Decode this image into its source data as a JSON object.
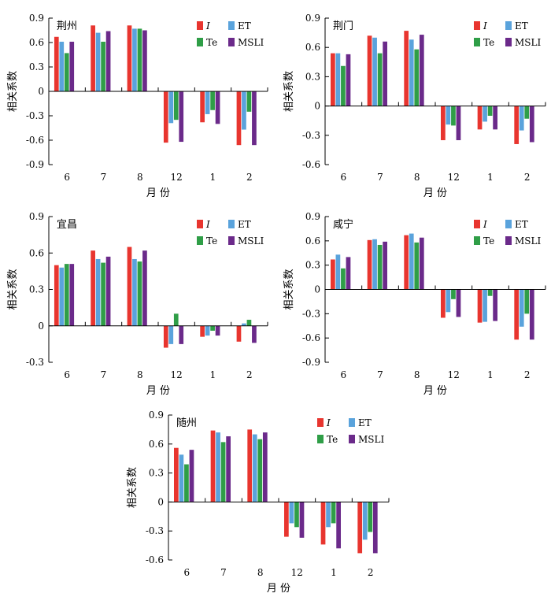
{
  "figure": {
    "xlabel": "月 份",
    "ylabel": "相关系数",
    "series_names": [
      "I",
      "ET",
      "Te",
      "MSLI"
    ],
    "series_colors": [
      "#e8352f",
      "#5aa3dc",
      "#2f9e47",
      "#6b2a8a"
    ]
  },
  "chart_data": [
    {
      "type": "bar",
      "title": "荆州",
      "categories": [
        "6",
        "7",
        "8",
        "12",
        "1",
        "2"
      ],
      "ylim": [
        -0.9,
        0.9
      ],
      "yticks": [
        "0.9",
        "0.6",
        "0.3",
        "0",
        "-0.3",
        "-0.6",
        "-0.9"
      ],
      "xlabel": "月 份",
      "ylabel": "相关系数",
      "grid": false,
      "legend": "top-right",
      "series": [
        {
          "name": "I",
          "values": [
            0.67,
            0.81,
            0.81,
            -0.63,
            -0.38,
            -0.66
          ]
        },
        {
          "name": "ET",
          "values": [
            0.61,
            0.72,
            0.77,
            -0.39,
            -0.28,
            -0.47
          ]
        },
        {
          "name": "Te",
          "values": [
            0.47,
            0.61,
            0.77,
            -0.35,
            -0.23,
            -0.25
          ]
        },
        {
          "name": "MSLI",
          "values": [
            0.61,
            0.74,
            0.75,
            -0.62,
            -0.4,
            -0.66
          ]
        }
      ]
    },
    {
      "type": "bar",
      "title": "荆门",
      "categories": [
        "6",
        "7",
        "8",
        "12",
        "1",
        "2"
      ],
      "ylim": [
        -0.6,
        0.9
      ],
      "yticks": [
        "0.9",
        "0.6",
        "0.3",
        "0",
        "-0.3",
        "-0.6"
      ],
      "xlabel": "月 份",
      "ylabel": "相关系数",
      "grid": false,
      "legend": "top-right",
      "series": [
        {
          "name": "I",
          "values": [
            0.54,
            0.72,
            0.77,
            -0.35,
            -0.24,
            -0.39
          ]
        },
        {
          "name": "ET",
          "values": [
            0.54,
            0.7,
            0.68,
            -0.19,
            -0.16,
            -0.25
          ]
        },
        {
          "name": "Te",
          "values": [
            0.41,
            0.54,
            0.58,
            -0.2,
            -0.1,
            -0.13
          ]
        },
        {
          "name": "MSLI",
          "values": [
            0.53,
            0.66,
            0.73,
            -0.35,
            -0.24,
            -0.37
          ]
        }
      ]
    },
    {
      "type": "bar",
      "title": "宜昌",
      "categories": [
        "6",
        "7",
        "8",
        "12",
        "1",
        "2"
      ],
      "ylim": [
        -0.3,
        0.9
      ],
      "yticks": [
        "0.9",
        "0.6",
        "0.3",
        "0",
        "-0.3"
      ],
      "xlabel": "月 份",
      "ylabel": "相关系数",
      "grid": false,
      "legend": "top-right",
      "series": [
        {
          "name": "I",
          "values": [
            0.5,
            0.62,
            0.65,
            -0.18,
            -0.09,
            -0.13
          ]
        },
        {
          "name": "ET",
          "values": [
            0.48,
            0.55,
            0.55,
            -0.15,
            -0.08,
            0.02
          ]
        },
        {
          "name": "Te",
          "values": [
            0.51,
            0.52,
            0.53,
            0.1,
            -0.04,
            0.05
          ]
        },
        {
          "name": "MSLI",
          "values": [
            0.51,
            0.57,
            0.62,
            -0.15,
            -0.08,
            -0.14
          ]
        }
      ]
    },
    {
      "type": "bar",
      "title": "咸宁",
      "categories": [
        "6",
        "7",
        "8",
        "12",
        "1",
        "2"
      ],
      "ylim": [
        -0.9,
        0.9
      ],
      "yticks": [
        "0.9",
        "0.6",
        "0.3",
        "0",
        "-0.3",
        "-0.6",
        "-0.9"
      ],
      "xlabel": "月 份",
      "ylabel": "相关系数",
      "grid": false,
      "legend": "top-right",
      "series": [
        {
          "name": "I",
          "values": [
            0.37,
            0.61,
            0.67,
            -0.35,
            -0.41,
            -0.62
          ]
        },
        {
          "name": "ET",
          "values": [
            0.43,
            0.62,
            0.69,
            -0.28,
            -0.4,
            -0.46
          ]
        },
        {
          "name": "Te",
          "values": [
            0.26,
            0.55,
            0.58,
            -0.12,
            -0.08,
            -0.3
          ]
        },
        {
          "name": "MSLI",
          "values": [
            0.4,
            0.59,
            0.64,
            -0.34,
            -0.39,
            -0.62
          ]
        }
      ]
    },
    {
      "type": "bar",
      "title": "随州",
      "categories": [
        "6",
        "7",
        "8",
        "12",
        "1",
        "2"
      ],
      "ylim": [
        -0.6,
        0.9
      ],
      "yticks": [
        "0.9",
        "0.6",
        "0.3",
        "0",
        "-0.3",
        "-0.6"
      ],
      "xlabel": "月 份",
      "ylabel": "相关系数",
      "grid": false,
      "legend": "top-right",
      "series": [
        {
          "name": "I",
          "values": [
            0.56,
            0.74,
            0.75,
            -0.36,
            -0.44,
            -0.53
          ]
        },
        {
          "name": "ET",
          "values": [
            0.49,
            0.72,
            0.7,
            -0.22,
            -0.26,
            -0.39
          ]
        },
        {
          "name": "Te",
          "values": [
            0.39,
            0.62,
            0.65,
            -0.26,
            -0.22,
            -0.31
          ]
        },
        {
          "name": "MSLI",
          "values": [
            0.54,
            0.68,
            0.72,
            -0.37,
            -0.48,
            -0.53
          ]
        }
      ]
    }
  ]
}
